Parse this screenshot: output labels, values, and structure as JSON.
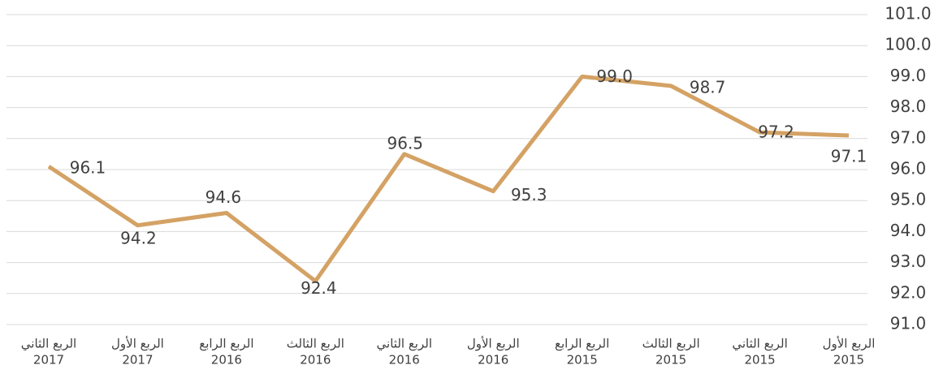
{
  "chart_data": {
    "type": "line",
    "categories": [
      [
        "الربع الأول",
        "2015"
      ],
      [
        "الربع الثاني",
        "2015"
      ],
      [
        "الربع الثالث",
        "2015"
      ],
      [
        "الربع الرابع",
        "2015"
      ],
      [
        "الربع الأول",
        "2016"
      ],
      [
        "الربع الثاني",
        "2016"
      ],
      [
        "الربع الثالث",
        "2016"
      ],
      [
        "الربع الرابع",
        "2016"
      ],
      [
        "الربع الأول",
        "2017"
      ],
      [
        "الربع الثاني",
        "2017"
      ]
    ],
    "series": [
      {
        "name": null,
        "color": "#d4a264",
        "values": [
          97.1,
          97.2,
          98.7,
          99.0,
          95.3,
          96.5,
          92.4,
          94.6,
          94.2,
          96.1
        ],
        "value_labels": [
          "97.1",
          "97.2",
          "98.7",
          "99.0",
          "95.3",
          "96.5",
          "92.4",
          "94.6",
          "94.2",
          "96.1"
        ]
      }
    ],
    "ylim": [
      91,
      101
    ],
    "yticks": [
      {
        "value": 91,
        "label": "91.0"
      },
      {
        "value": 92,
        "label": "92.0"
      },
      {
        "value": 93,
        "label": "93.0"
      },
      {
        "value": 94,
        "label": "94.0"
      },
      {
        "value": 95,
        "label": "95.0"
      },
      {
        "value": 96,
        "label": "96.0"
      },
      {
        "value": 97,
        "label": "97.0"
      },
      {
        "value": 98,
        "label": "98.0"
      },
      {
        "value": 99,
        "label": "99.0"
      },
      {
        "value": 100,
        "label": "100.0"
      },
      {
        "value": 101,
        "label": "101.0"
      }
    ],
    "grid": true,
    "x_direction": "rtl"
  }
}
